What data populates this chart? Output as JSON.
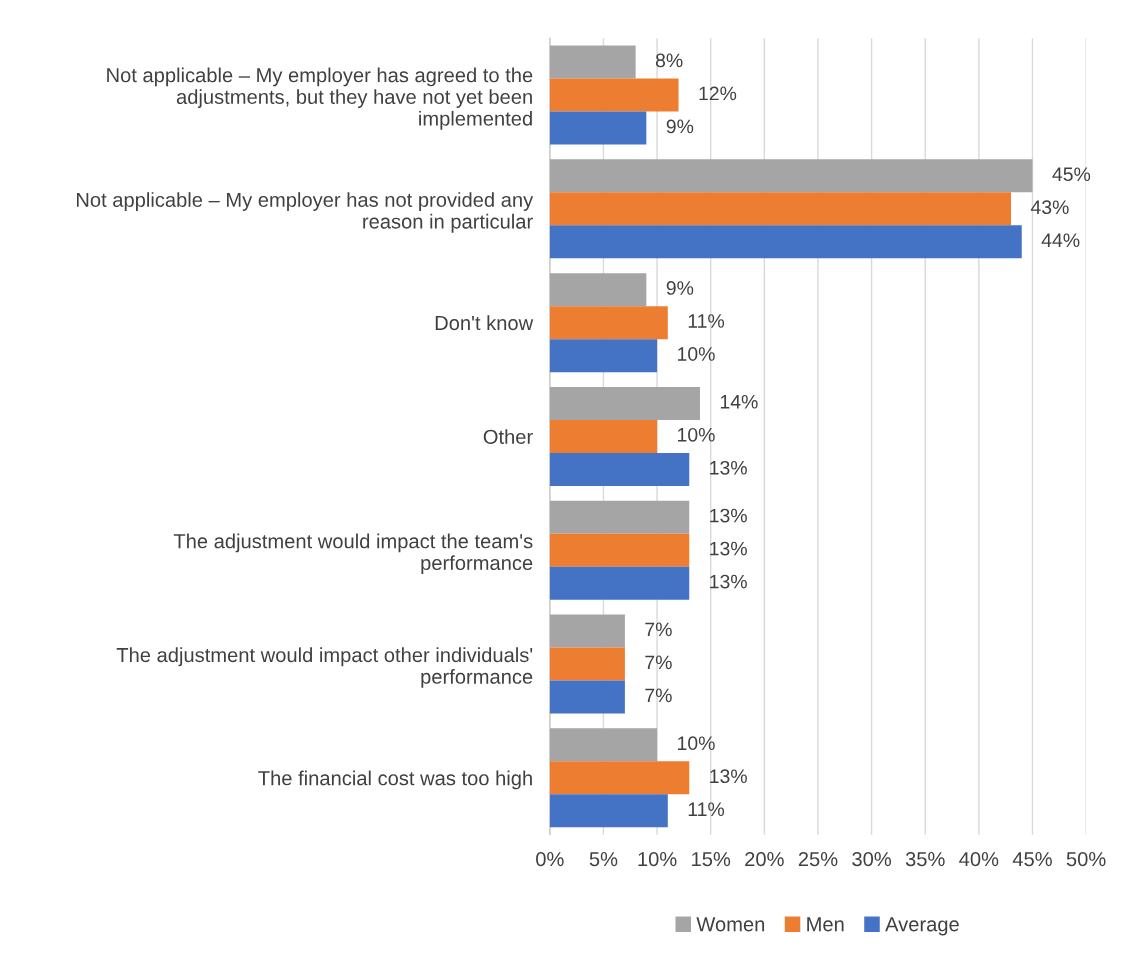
{
  "chart_data": {
    "type": "bar",
    "orientation": "horizontal",
    "categories": [
      "Not applicable – My employer has agreed to the\nadjustments, but they have not yet been\nimplemented",
      "Not applicable – My employer has not provided any\nreason in particular",
      "Don't know",
      "Other",
      "The adjustment would impact the team's\nperformance",
      "The adjustment would impact other individuals'\nperformance",
      "The financial cost was too high"
    ],
    "series": [
      {
        "name": "Women",
        "color": "#a5a5a5",
        "values": [
          8,
          45,
          9,
          14,
          13,
          7,
          10
        ],
        "value_labels": [
          "8%",
          "45%",
          "9%",
          "14%",
          "13%",
          "7%",
          "10%"
        ]
      },
      {
        "name": "Men",
        "color": "#ed7d31",
        "values": [
          12,
          43,
          11,
          10,
          13,
          7,
          13
        ],
        "value_labels": [
          "12%",
          "43%",
          "11%",
          "10%",
          "13%",
          "7%",
          "13%"
        ]
      },
      {
        "name": "Average",
        "color": "#4472c4",
        "values": [
          9,
          44,
          10,
          13,
          13,
          7,
          11
        ],
        "value_labels": [
          "9%",
          "44%",
          "10%",
          "13%",
          "13%",
          "7%",
          "11%"
        ]
      }
    ],
    "xlim": [
      0,
      50
    ],
    "xticks": [
      {
        "value": 0,
        "label": "0%"
      },
      {
        "value": 5,
        "label": "5%"
      },
      {
        "value": 10,
        "label": "10%"
      },
      {
        "value": 15,
        "label": "15%"
      },
      {
        "value": 20,
        "label": "20%"
      },
      {
        "value": 25,
        "label": "25%"
      },
      {
        "value": 30,
        "label": "30%"
      },
      {
        "value": 35,
        "label": "35%"
      },
      {
        "value": 40,
        "label": "40%"
      },
      {
        "value": 45,
        "label": "45%"
      },
      {
        "value": 50,
        "label": "50%"
      }
    ],
    "grid": "x",
    "legend": "bottom"
  }
}
